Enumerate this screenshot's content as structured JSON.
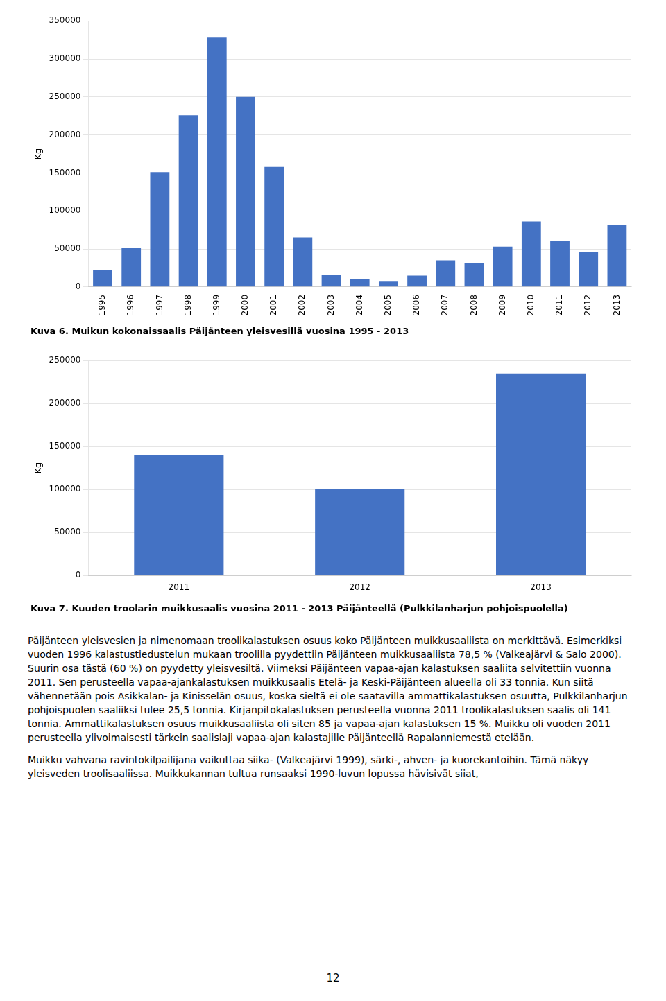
{
  "chart_data": [
    {
      "type": "bar",
      "title": "Kuva 6. Muikun kokonaissaalis Päijänteen yleisvesillä vuosina 1995 - 2013",
      "y_label": "Kg",
      "categories": [
        "1995",
        "1996",
        "1997",
        "1998",
        "1999",
        "2000",
        "2001",
        "2002",
        "2003",
        "2004",
        "2005",
        "2006",
        "2007",
        "2008",
        "2009",
        "2010",
        "2011",
        "2012",
        "2013"
      ],
      "values": [
        22000,
        51000,
        151000,
        226000,
        328000,
        250000,
        158000,
        65000,
        16000,
        10000,
        7000,
        15000,
        35000,
        31000,
        53000,
        86000,
        60000,
        46000,
        82000
      ],
      "color": "#4472C4",
      "ylim": [
        0,
        350000
      ],
      "yticks": [
        0,
        50000,
        100000,
        150000,
        200000,
        250000,
        300000,
        350000
      ],
      "grid": true
    },
    {
      "type": "bar",
      "title": "Kuva 7. Kuuden troolarin muikkusaalis vuosina 2011 - 2013 Päijänteellä (Pulkkilanharjun pohjoispuolella)",
      "y_label": "Kg",
      "categories": [
        "2011",
        "2012",
        "2013"
      ],
      "values": [
        140000,
        100000,
        235000
      ],
      "color": "#4472C4",
      "ylim": [
        0,
        250000
      ],
      "yticks": [
        0,
        50000,
        100000,
        150000,
        200000,
        250000
      ],
      "grid": true
    }
  ],
  "body_text": [
    "Päijänteen yleisvesien ja nimenomaan troolikalastuksen osuus koko Päijänteen muikkusaaliista on merkittävä. Esimerkiksi vuoden 1996 kalastustiedustelun mukaan troolilla pyydettiin Päijänteen muikkusaaliista 78,5 % (Valkeajärvi & Salo 2000). Suurin osa tästä (60 %) on pyydetty yleisvesiltä. Viimeksi Päijänteen vapaa-ajan kalastuksen saaliita selvitettiin vuonna 2011. Sen perusteella vapaa-ajankalastuksen muikkusaalis Etelä- ja Keski-Päijänteen alueella oli 33 tonnia. Kun siitä vähennetään pois Asikkalan- ja Kinisselän osuus, koska sieltä ei ole saatavilla ammattikalastuksen osuutta, Pulkkilanharjun pohjoispuolen saaliiksi tulee 25,5 tonnia. Kirjanpitokalastuksen perusteella vuonna 2011 troolikalastuksen saalis oli 141 tonnia. Ammattikalastuksen osuus muikkusaaliista oli siten 85 ja vapaa-ajan kalastuksen 15 %. Muikku oli vuoden 2011 perusteella ylivoimaisesti tärkein saalislaji vapaa-ajan kalastajille Päijänteellä Rapalanniemestä etelään.",
    "Muikku vahvana ravintokilpailijana vaikuttaa siika- (Valkeajärvi 1999), särki-, ahven- ja kuorekantoihin. Tämä näkyy yleisveden troolisaaliissa. Muikkukannan tultua runsaaksi 1990-luvun lopussa hävisivät siiat,"
  ],
  "page_number": "12"
}
